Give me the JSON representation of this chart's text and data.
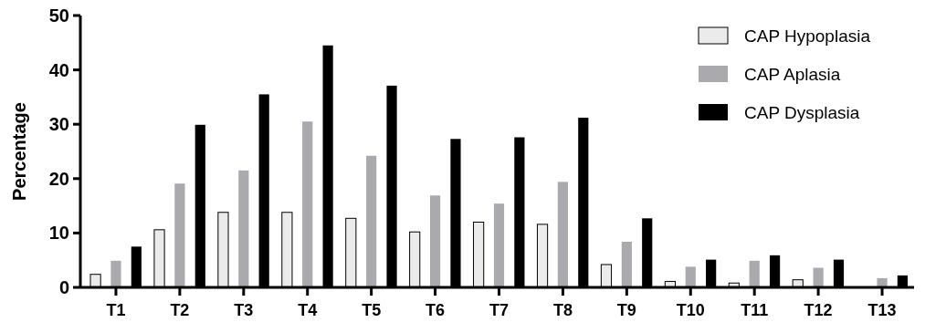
{
  "chart_data": {
    "type": "bar",
    "ylabel": "Percentage",
    "categories": [
      "T1",
      "T2",
      "T3",
      "T4",
      "T5",
      "T6",
      "T7",
      "T8",
      "T9",
      "T10",
      "T11",
      "T12",
      "T13"
    ],
    "series": [
      {
        "name": "CAP Hypoplasia",
        "color": "#ebebeb",
        "values": [
          2.4,
          10.6,
          13.8,
          13.8,
          12.7,
          10.2,
          12.0,
          11.6,
          4.2,
          1.1,
          0.8,
          1.4,
          null
        ]
      },
      {
        "name": "CAP Aplasia",
        "color": "#a9a9ae",
        "values": [
          4.9,
          19.1,
          21.5,
          30.5,
          24.2,
          16.9,
          15.4,
          19.4,
          8.4,
          3.8,
          4.9,
          3.6,
          1.7
        ]
      },
      {
        "name": "CAP Dysplasia",
        "color": "#000000",
        "values": [
          7.5,
          29.9,
          35.5,
          44.5,
          37.1,
          27.3,
          27.6,
          31.2,
          12.7,
          5.1,
          5.9,
          5.1,
          2.2
        ]
      }
    ],
    "ylim": [
      0,
      50
    ],
    "yticks": [
      0,
      10,
      20,
      30,
      40,
      50
    ],
    "legend": "top right"
  }
}
